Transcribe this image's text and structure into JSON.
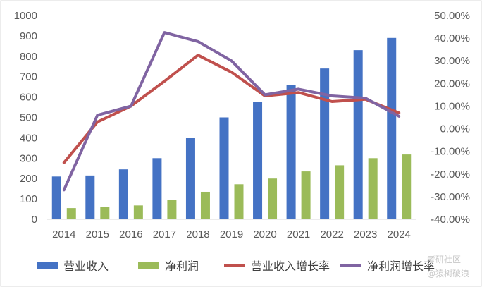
{
  "chart_data": {
    "type": "bar+line",
    "categories": [
      "2014",
      "2015",
      "2016",
      "2017",
      "2018",
      "2019",
      "2020",
      "2021",
      "2022",
      "2023",
      "2024"
    ],
    "series": [
      {
        "name": "营业收入",
        "type": "bar",
        "axis": "left",
        "color": "#4472c4",
        "values": [
          210,
          215,
          245,
          300,
          400,
          500,
          575,
          660,
          740,
          830,
          890
        ]
      },
      {
        "name": "净利润",
        "type": "bar",
        "axis": "left",
        "color": "#9bbb59",
        "values": [
          55,
          60,
          68,
          95,
          135,
          172,
          200,
          235,
          265,
          300,
          318
        ]
      },
      {
        "name": "营业收入增长率",
        "type": "line",
        "axis": "right",
        "color": "#c0504d",
        "values": [
          -15,
          3,
          10,
          21,
          32.5,
          25,
          14.5,
          16,
          12,
          13,
          7
        ]
      },
      {
        "name": "净利润增长率",
        "type": "line",
        "axis": "right",
        "color": "#8064a2",
        "values": [
          -27,
          6,
          10,
          42.5,
          38.5,
          30,
          15,
          17.5,
          14.5,
          13.5,
          5.5
        ]
      }
    ],
    "left_axis": {
      "min": 0,
      "max": 1000,
      "step": 100,
      "ticks": [
        "0",
        "100",
        "200",
        "300",
        "400",
        "500",
        "600",
        "700",
        "800",
        "900",
        "1000"
      ]
    },
    "right_axis": {
      "min": -40,
      "max": 50,
      "step": 10,
      "ticks": [
        "-40.00%",
        "-30.00%",
        "-20.00%",
        "-10.00%",
        "0.00%",
        "10.00%",
        "20.00%",
        "30.00%",
        "40.00%",
        "50.00%"
      ]
    },
    "legend_position": "bottom",
    "grid": false
  },
  "watermark": {
    "line1": "考研社区",
    "line2": "@猿树破浪"
  }
}
